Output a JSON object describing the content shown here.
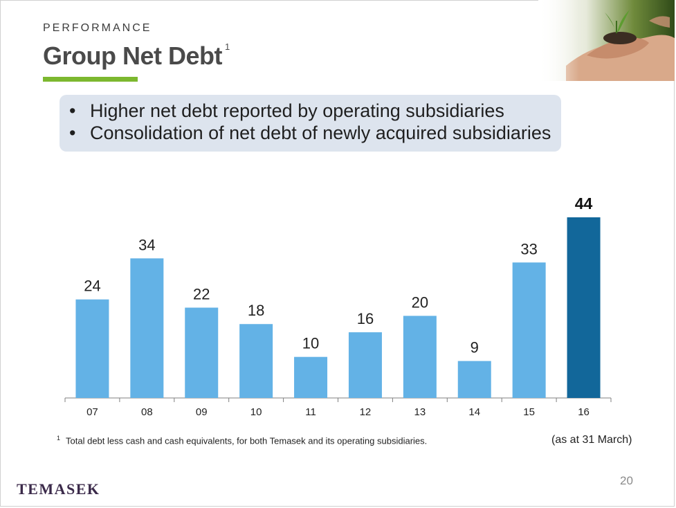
{
  "header": {
    "section_label": "PERFORMANCE",
    "title": "Group Net Debt",
    "title_footnote_marker": "1"
  },
  "callout": {
    "bullets": [
      "Higher net debt reported by operating subsidiaries",
      "Consolidation of net debt of newly acquired subsidiaries"
    ]
  },
  "chart_data": {
    "type": "bar",
    "categories": [
      "07",
      "08",
      "09",
      "10",
      "11",
      "12",
      "13",
      "14",
      "15",
      "16"
    ],
    "values": [
      24,
      34,
      22,
      18,
      10,
      16,
      20,
      9,
      33,
      44
    ],
    "title": "",
    "xlabel": "",
    "ylabel": "",
    "ylim": [
      0,
      44
    ],
    "grid": false,
    "highlight_index": 9,
    "colors": {
      "bar": "#63b2e6",
      "highlight": "#12679a",
      "axis": "#7f7f7f"
    }
  },
  "footer": {
    "footnote_marker": "1",
    "footnote_text": "Total debt less cash and cash equivalents, for both Temasek and its operating subsidiaries.",
    "as_of": "(as at 31 March)",
    "logo_text": "TEMASEK",
    "page_number": "20"
  },
  "colors": {
    "accent": "#7cb82f",
    "callout_bg": "#dde4ee",
    "logo": "#3b2a4a"
  }
}
